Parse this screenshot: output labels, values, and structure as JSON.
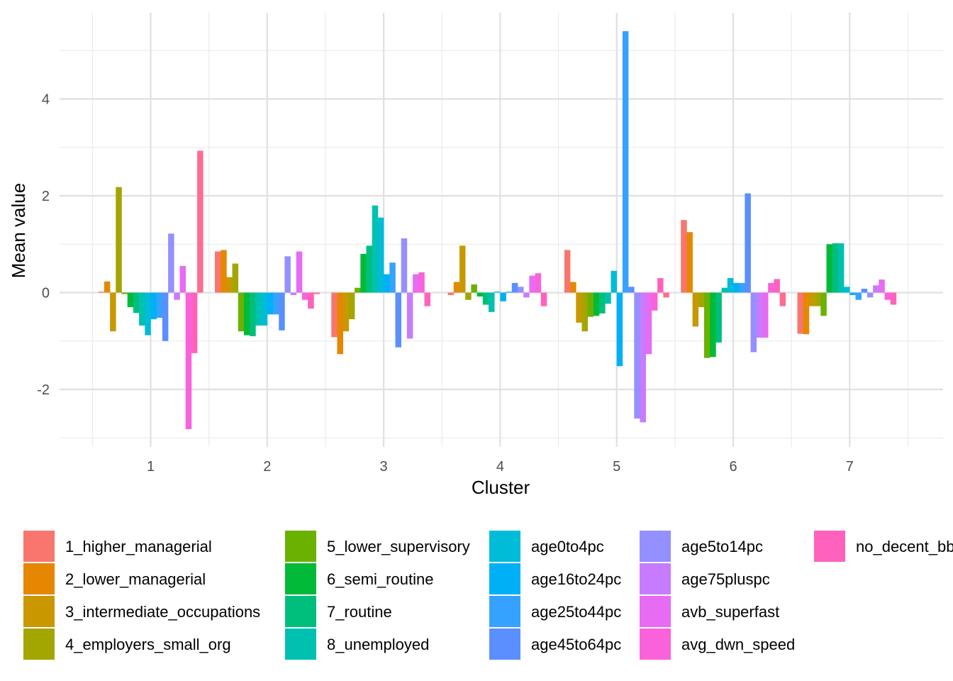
{
  "chart_data": {
    "type": "bar",
    "title": "",
    "xlabel": "Cluster",
    "ylabel": "Mean value",
    "categories": [
      "1",
      "2",
      "3",
      "4",
      "5",
      "6",
      "7"
    ],
    "yticks": [
      "-2",
      "0",
      "2",
      "4"
    ],
    "ylim": [
      -3.0,
      5.5
    ],
    "grid": true,
    "legend_position": "bottom",
    "series": [
      {
        "name": "1_higher_managerial",
        "color": "#F8766D",
        "values": [
          0.02,
          0.85,
          -0.92,
          -0.05,
          0.88,
          1.5,
          -0.85
        ]
      },
      {
        "name": "2_lower_managerial",
        "color": "#E58700",
        "values": [
          0.23,
          0.88,
          -1.27,
          0.22,
          0.22,
          1.25,
          -0.86
        ]
      },
      {
        "name": "3_intermediate_occupations",
        "color": "#C99800",
        "values": [
          -0.8,
          0.32,
          -0.8,
          0.97,
          -0.62,
          -0.7,
          -0.28
        ]
      },
      {
        "name": "4_employers_small_org",
        "color": "#A3A500",
        "values": [
          2.18,
          0.6,
          -0.55,
          -0.15,
          -0.8,
          -0.3,
          -0.28
        ]
      },
      {
        "name": "5_lower_supervisory",
        "color": "#6BB100",
        "values": [
          -0.03,
          -0.8,
          0.1,
          0.17,
          -0.5,
          -1.35,
          -0.48
        ]
      },
      {
        "name": "6_semi_routine",
        "color": "#00BA38",
        "values": [
          -0.3,
          -0.88,
          0.8,
          -0.08,
          -0.48,
          -1.33,
          1.0
        ]
      },
      {
        "name": "7_routine",
        "color": "#00BF7D",
        "values": [
          -0.42,
          -0.9,
          0.97,
          -0.25,
          -0.43,
          -1.03,
          1.02
        ]
      },
      {
        "name": "8_unemployed",
        "color": "#00C0AF",
        "values": [
          -0.68,
          -0.68,
          1.8,
          -0.4,
          -0.23,
          0.1,
          1.02
        ]
      },
      {
        "name": "age0to4pc",
        "color": "#00BCD8",
        "values": [
          -0.88,
          -0.68,
          1.55,
          0.02,
          0.45,
          0.3,
          0.12
        ]
      },
      {
        "name": "age16to24pc",
        "color": "#00B0F6",
        "values": [
          -0.55,
          -0.45,
          0.38,
          -0.18,
          -1.52,
          0.2,
          -0.05
        ]
      },
      {
        "name": "age25to44pc",
        "color": "#35A2FF",
        "values": [
          -0.52,
          -0.45,
          0.62,
          0.02,
          5.4,
          0.2,
          -0.15
        ]
      },
      {
        "name": "age45to64pc",
        "color": "#5B8FFF",
        "values": [
          -1.0,
          -0.78,
          -1.13,
          0.2,
          0.12,
          2.05,
          0.08
        ]
      },
      {
        "name": "age5to14pc",
        "color": "#9590FF",
        "values": [
          1.22,
          0.75,
          1.12,
          0.12,
          -2.6,
          -1.23,
          -0.1
        ]
      },
      {
        "name": "age75pluspc",
        "color": "#C77CFF",
        "values": [
          -0.15,
          -0.05,
          -0.95,
          -0.1,
          -2.68,
          -0.93,
          0.15
        ]
      },
      {
        "name": "avb_superfast",
        "color": "#E76BF3",
        "values": [
          0.55,
          0.85,
          0.38,
          0.35,
          -1.27,
          -0.93,
          0.27
        ]
      },
      {
        "name": "avg_dwn_speed",
        "color": "#FA62DB",
        "values": [
          -2.82,
          -0.15,
          0.42,
          0.4,
          -0.37,
          0.2,
          -0.15
        ]
      },
      {
        "name": "no_decent_bb",
        "color": "#FF62BC",
        "values": [
          -1.25,
          -0.33,
          -0.28,
          -0.28,
          0.3,
          0.28,
          -0.25
        ]
      },
      {
        "name": "",
        "color": "#FF6C90",
        "values": [
          2.93,
          -0.03,
          null,
          null,
          -0.1,
          -0.28,
          null
        ]
      }
    ]
  },
  "legend": {
    "columns": [
      [
        "1_higher_managerial",
        "2_lower_managerial",
        "3_intermediate_occupations",
        "4_employers_small_org"
      ],
      [
        "5_lower_supervisory",
        "6_semi_routine",
        "7_routine",
        "8_unemployed"
      ],
      [
        "age0to4pc",
        "age16to24pc",
        "age25to44pc",
        "age45to64pc"
      ],
      [
        "age5to14pc",
        "age75pluspc",
        "avb_superfast",
        "avg_dwn_speed"
      ],
      [
        "no_decent_bb"
      ]
    ]
  }
}
